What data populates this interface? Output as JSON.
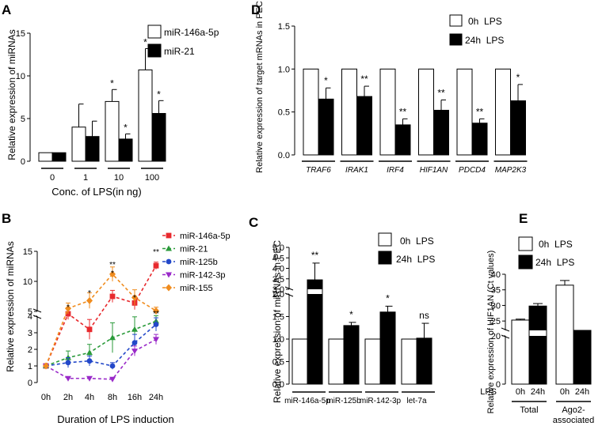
{
  "panels": [
    {
      "id": "A",
      "letter": "A",
      "chart_data": {
        "type": "bar",
        "ylabel": "Relative expression of miRNAs",
        "xlabel": "Conc. of LPS(in ng)",
        "categories": [
          "0",
          "1",
          "10",
          "100"
        ],
        "ylim": [
          0,
          15
        ],
        "yticks": [
          0,
          5,
          10,
          15
        ],
        "series": [
          {
            "name": "miR-146a-5p",
            "fill": "#ffffff",
            "values": [
              1.0,
              4.0,
              7.0,
              10.7
            ],
            "errors": [
              0,
              2.7,
              1.4,
              2.5
            ],
            "sig": [
              "",
              "",
              "*",
              "*"
            ]
          },
          {
            "name": "miR-21",
            "fill": "#000000",
            "values": [
              1.0,
              2.9,
              2.6,
              5.6
            ],
            "errors": [
              0,
              1.8,
              0.6,
              1.5
            ],
            "sig": [
              "",
              "",
              "*",
              "*"
            ]
          }
        ]
      }
    },
    {
      "id": "B",
      "letter": "B",
      "chart_data": {
        "type": "line",
        "ylabel": "Relative expression of miRNAs",
        "xlabel": "Duration of LPS induction",
        "categories": [
          "0h",
          "2h",
          "4h",
          "8h",
          "16h",
          "24h"
        ],
        "ylim": [
          0,
          15
        ],
        "yticks": [
          0,
          1,
          2,
          3,
          4,
          5,
          10,
          15
        ],
        "axis_break": [
          4,
          5
        ],
        "series": [
          {
            "name": "miR-146a-5p",
            "color": "#e8292d",
            "marker": "square",
            "values": [
              1.0,
              4.6,
              3.2,
              7.5,
              6.4,
              12.6
            ],
            "errors": [
              0,
              0.8,
              0.6,
              1.0,
              1.1,
              0.6
            ]
          },
          {
            "name": "miR-21",
            "color": "#2a9a3a",
            "marker": "triangle",
            "values": [
              1.0,
              1.5,
              1.8,
              2.7,
              3.2,
              3.7
            ],
            "errors": [
              0,
              0.4,
              0.5,
              0.9,
              0.9,
              0.6
            ]
          },
          {
            "name": "miR-125b",
            "color": "#2348c9",
            "marker": "circle",
            "values": [
              1.0,
              1.2,
              1.3,
              1.0,
              2.4,
              3.5
            ],
            "errors": [
              0,
              0.3,
              0.3,
              0.2,
              0.5,
              0.4
            ]
          },
          {
            "name": "miR-142-3p",
            "color": "#9a2ac9",
            "marker": "triangle-down",
            "values": [
              1.0,
              0.25,
              0.25,
              0.2,
              1.9,
              2.6
            ],
            "errors": [
              0,
              0.1,
              0.1,
              0.1,
              0.3,
              0.3
            ]
          },
          {
            "name": "miR-155",
            "color": "#f08c1e",
            "marker": "diamond",
            "values": [
              1.0,
              5.5,
              6.8,
              11.2,
              7.3,
              5.1
            ],
            "errors": [
              0,
              0.9,
              1.3,
              1.2,
              1.3,
              0.6
            ]
          }
        ],
        "sig": [
          {
            "x": "2h",
            "text": "*"
          },
          {
            "x": "4h",
            "text": "*"
          },
          {
            "x": "8h",
            "text": "**"
          },
          {
            "x": "8h",
            "text": "*"
          },
          {
            "x": "16h",
            "text": "*"
          },
          {
            "x": "24h",
            "text": "**"
          },
          {
            "x": "24h",
            "text": "**"
          }
        ]
      }
    },
    {
      "id": "C",
      "letter": "C",
      "chart_data": {
        "type": "bar",
        "ylabel": "Relative expression of miRNAs in PEC",
        "categories": [
          "miR-146a-5p",
          "miR-125b",
          "miR-142-3p",
          "let-7a"
        ],
        "ylim": [
          0,
          5
        ],
        "yticks": [
          0,
          0.5,
          1.0,
          1.5,
          2.0,
          3.0,
          3.5,
          4.0,
          4.5,
          5.0
        ],
        "axis_break": [
          2.0,
          3.0
        ],
        "series": [
          {
            "name": "0h  LPS",
            "fill": "#ffffff",
            "values": [
              1.0,
              1.0,
              1.0,
              1.0
            ],
            "errors": [
              0,
              0,
              0,
              0
            ]
          },
          {
            "name": "24h  LPS",
            "fill": "#000000",
            "values": [
              3.45,
              1.3,
              1.6,
              1.02
            ],
            "errors": [
              0.8,
              0.07,
              0.13,
              0.33
            ]
          }
        ],
        "sig": [
          "**",
          "*",
          "*",
          "ns"
        ]
      }
    },
    {
      "id": "D",
      "letter": "D",
      "chart_data": {
        "type": "bar",
        "ylabel": "Relative expression of target mRNAs  in PEC",
        "categories": [
          "TRAF6",
          "IRAK1",
          "IRF4",
          "HIF1AN",
          "PDCD4",
          "MAP2K3"
        ],
        "ylim": [
          0,
          1.5
        ],
        "yticks": [
          0,
          0.5,
          1.0,
          1.5
        ],
        "series": [
          {
            "name": "0h  LPS",
            "fill": "#ffffff",
            "values": [
              1.0,
              1.0,
              1.0,
              1.0,
              1.0,
              1.0
            ],
            "errors": [
              0,
              0,
              0,
              0,
              0,
              0
            ]
          },
          {
            "name": "24h  LPS",
            "fill": "#000000",
            "values": [
              0.65,
              0.68,
              0.35,
              0.52,
              0.37,
              0.63
            ],
            "errors": [
              0.13,
              0.12,
              0.07,
              0.12,
              0.05,
              0.19
            ]
          }
        ],
        "sig": [
          "*",
          "**",
          "**",
          "**",
          "**",
          "*"
        ]
      }
    },
    {
      "id": "E",
      "letter": "E",
      "chart_data": {
        "type": "bar",
        "ylabel": "Relative expression of HIF1AN (Ct values)",
        "x_row_label": "LPS",
        "categories": [
          "0h",
          "24h",
          "0h",
          "24h"
        ],
        "groups": [
          "Total",
          "Ago2-associated"
        ],
        "ylim": [
          0,
          40
        ],
        "yticks": [
          0,
          20,
          25,
          30,
          35,
          40
        ],
        "axis_break": [
          20,
          22
        ],
        "series": [
          {
            "name": "0h  LPS",
            "fill": "#ffffff",
            "values": [
              25.3,
              null,
              36.5,
              null
            ],
            "errors": [
              0.3,
              null,
              1.5,
              null
            ]
          },
          {
            "name": "24h  LPS",
            "fill": "#000000",
            "values": [
              null,
              29.8,
              null,
              20.7
            ],
            "errors": [
              null,
              0.8,
              null,
              0.4
            ]
          }
        ]
      }
    }
  ]
}
